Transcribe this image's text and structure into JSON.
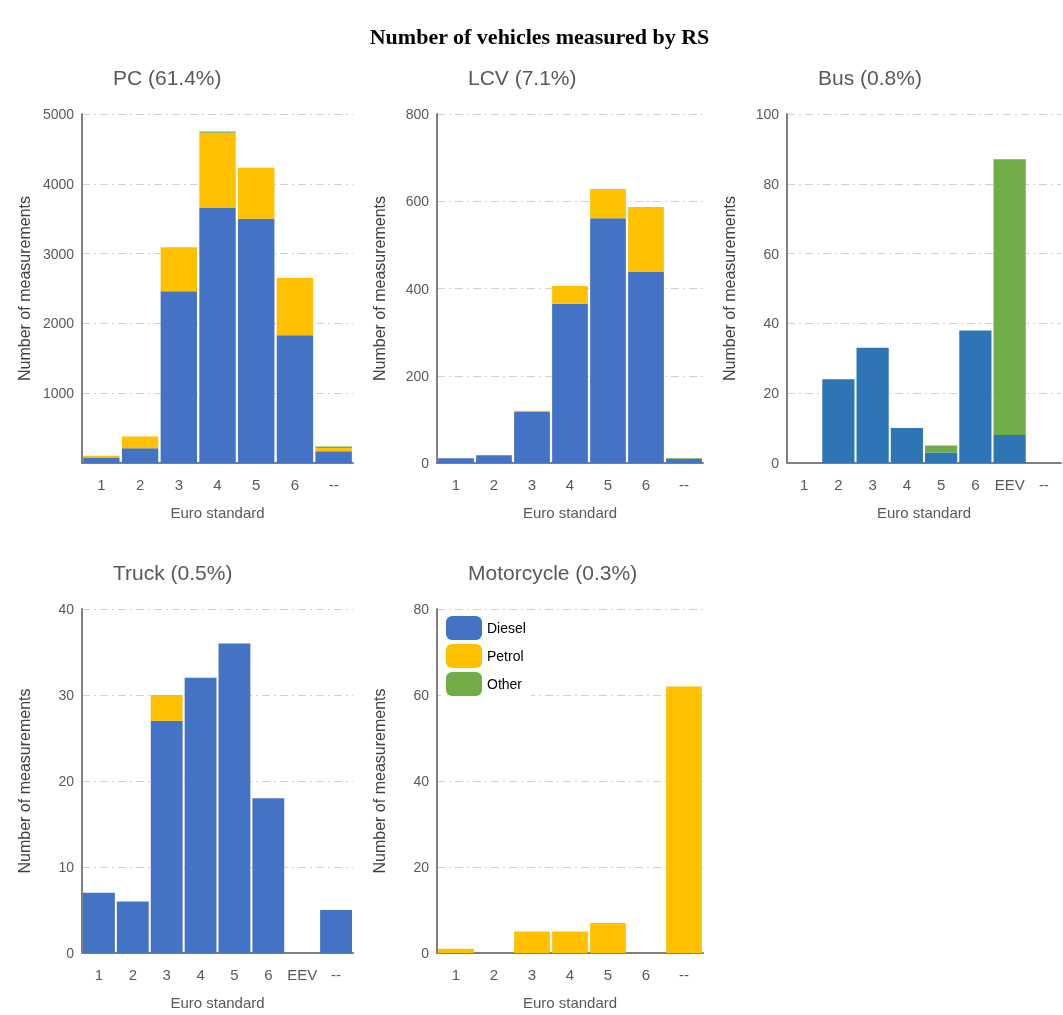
{
  "chart_data": [
    {
      "type": "other",
      "title": "Number of vehicles measured by RS"
    },
    {
      "type": "bar",
      "title": "PC (61.4%)",
      "xlabel": "Euro standard",
      "ylabel": "Number of measurements",
      "categories": [
        "1",
        "2",
        "3",
        "4",
        "5",
        "6",
        "--"
      ],
      "stacked": true,
      "grid": "y",
      "legend": false,
      "ylim": [
        0,
        5000
      ],
      "yticks": [
        1000,
        2000,
        3000,
        4000,
        5000
      ],
      "series": [
        {
          "color": "#4472c4",
          "values": [
            80,
            210,
            2460,
            3660,
            3500,
            1830,
            170
          ]
        },
        {
          "color": "#ffc000",
          "values": [
            25,
            170,
            630,
            1070,
            730,
            820,
            45
          ]
        },
        {
          "color": "#70ad47",
          "values": [
            0,
            0,
            0,
            20,
            0,
            0,
            20
          ]
        }
      ]
    },
    {
      "type": "bar",
      "title": "LCV (7.1%)",
      "xlabel": "Euro standard",
      "ylabel": "Number of measurements",
      "categories": [
        "1",
        "2",
        "3",
        "4",
        "5",
        "6",
        "--"
      ],
      "stacked": true,
      "grid": "y",
      "legend": false,
      "ylim": [
        0,
        800
      ],
      "yticks": [
        0,
        200,
        400,
        600,
        800
      ],
      "series": [
        {
          "color": "#4472c4",
          "values": [
            11,
            18,
            118,
            365,
            561,
            438,
            9
          ]
        },
        {
          "color": "#ffc000",
          "values": [
            0,
            0,
            2,
            41,
            67,
            149,
            0
          ]
        },
        {
          "color": "#70ad47",
          "values": [
            0,
            0,
            0,
            0,
            0,
            0,
            2
          ]
        }
      ]
    },
    {
      "type": "bar",
      "title": "Bus (0.8%)",
      "xlabel": "Euro standard",
      "ylabel": "Number of measurements",
      "categories": [
        "1",
        "2",
        "3",
        "4",
        "5",
        "6",
        "EEV",
        "--"
      ],
      "stacked": true,
      "grid": "y",
      "legend": false,
      "ylim": [
        0,
        100
      ],
      "yticks": [
        0,
        20,
        40,
        60,
        80,
        100
      ],
      "series": [
        {
          "color": "#2e75b6",
          "values": [
            0,
            24,
            33,
            10,
            3,
            38,
            8,
            0
          ]
        },
        {
          "color": "#70ad47",
          "values": [
            0,
            0,
            0,
            0,
            2,
            0,
            79,
            0
          ]
        }
      ]
    },
    {
      "type": "bar",
      "title": "Truck (0.5%)",
      "xlabel": "Euro standard",
      "ylabel": "Number of measurements",
      "categories": [
        "1",
        "2",
        "3",
        "4",
        "5",
        "6",
        "EEV",
        "--"
      ],
      "stacked": true,
      "grid": "y",
      "legend": false,
      "ylim": [
        0,
        40
      ],
      "yticks": [
        0,
        10,
        20,
        30,
        40
      ],
      "series": [
        {
          "color": "#4472c4",
          "values": [
            7,
            6,
            27,
            32,
            36,
            18,
            0,
            5
          ]
        },
        {
          "color": "#ffc000",
          "values": [
            0,
            0,
            3,
            0,
            0,
            0,
            0,
            0
          ]
        }
      ]
    },
    {
      "type": "bar",
      "title": "Motorcycle (0.3%)",
      "xlabel": "Euro standard",
      "ylabel": "Number of measurements",
      "categories": [
        "1",
        "2",
        "3",
        "4",
        "5",
        "6",
        "--"
      ],
      "stacked": true,
      "grid": "y",
      "legend": "top left",
      "ylim": [
        0,
        80
      ],
      "yticks": [
        0,
        20,
        40,
        60,
        80
      ],
      "series": [
        {
          "name": "Diesel",
          "color": "#4472c4",
          "values": [
            0,
            0,
            0,
            0,
            0,
            0,
            0
          ]
        },
        {
          "name": "Petrol",
          "color": "#ffc000",
          "values": [
            1,
            0,
            5,
            5,
            7,
            0,
            62
          ]
        },
        {
          "name": "Other",
          "color": "#70ad47",
          "values": [
            0,
            0,
            0,
            0,
            0,
            0,
            0
          ]
        }
      ]
    }
  ]
}
